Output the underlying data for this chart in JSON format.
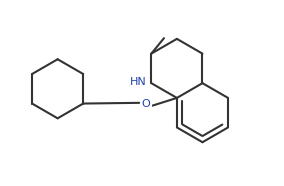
{
  "bg_color": "#ffffff",
  "line_color": "#333333",
  "line_width": 1.5,
  "font_size_hn": 8,
  "font_size_o": 8,
  "hn_label": "HN",
  "o_label": "O",
  "fig_width": 2.84,
  "fig_height": 1.86,
  "xlim": [
    0.0,
    10.0
  ],
  "ylim": [
    0.0,
    6.5
  ]
}
